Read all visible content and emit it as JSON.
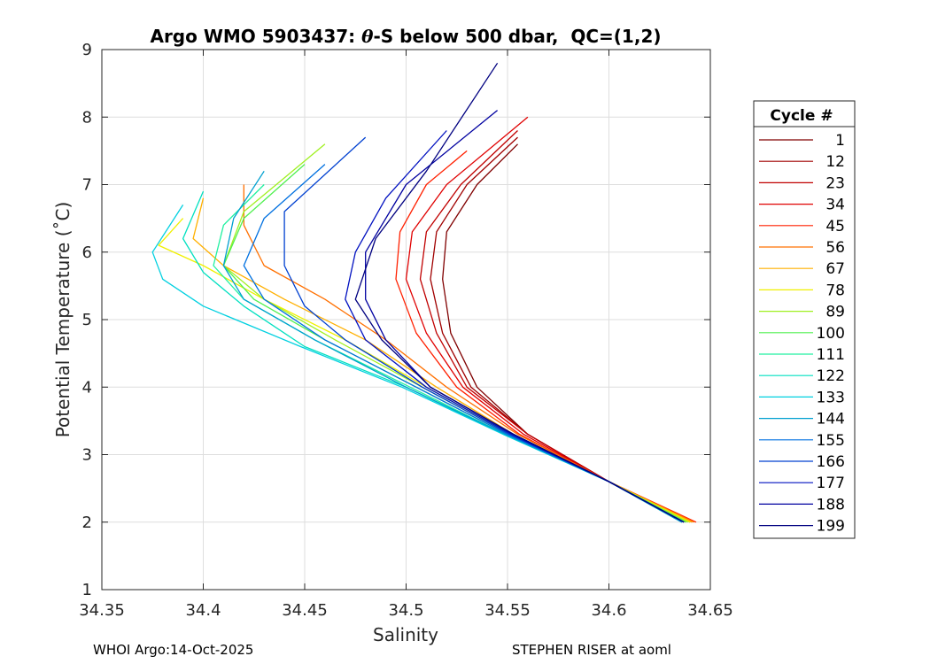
{
  "chart_data": {
    "type": "line",
    "title_prefix": "Argo WMO 5903437: ",
    "title_symbol": "θ",
    "title_suffix": "-S below 500 dbar,  QC=(1,2)",
    "xlabel": "Salinity",
    "ylabel": "Potential Temperature (˚C)",
    "xlim": [
      34.35,
      34.65
    ],
    "ylim": [
      1,
      9
    ],
    "xticks": [
      "34.35",
      "34.4",
      "34.45",
      "34.5",
      "34.55",
      "34.6",
      "34.65"
    ],
    "yticks": [
      "1",
      "2",
      "3",
      "4",
      "5",
      "6",
      "7",
      "8",
      "9"
    ],
    "grid": true,
    "legend": {
      "title": "Cycle #",
      "placement": "right",
      "entries": [
        "1",
        "12",
        "23",
        "34",
        "45",
        "56",
        "67",
        "78",
        "89",
        "100",
        "111",
        "122",
        "133",
        "144",
        "155",
        "166",
        "177",
        "188",
        "199"
      ],
      "colors": [
        "#800000",
        "#a00000",
        "#c00000",
        "#e00000",
        "#ff2000",
        "#ff7000",
        "#ffb000",
        "#f0f000",
        "#a0f020",
        "#50f050",
        "#20f0a0",
        "#00e0c0",
        "#00d0e0",
        "#00a0d0",
        "#0070e0",
        "#0040d0",
        "#0010c0",
        "#0000a0",
        "#000080"
      ]
    },
    "series": [
      {
        "name": "1",
        "s": [
          34.636,
          34.6,
          34.56,
          34.535,
          34.522,
          34.518,
          34.52,
          34.535,
          34.555
        ],
        "t": [
          2.0,
          2.6,
          3.3,
          4.0,
          4.8,
          5.6,
          6.3,
          7.0,
          7.6
        ]
      },
      {
        "name": "12",
        "s": [
          34.638,
          34.6,
          34.56,
          34.532,
          34.518,
          34.512,
          34.515,
          34.53,
          34.555
        ],
        "t": [
          2.0,
          2.6,
          3.3,
          4.0,
          4.8,
          5.6,
          6.3,
          7.0,
          7.7
        ]
      },
      {
        "name": "23",
        "s": [
          34.64,
          34.6,
          34.56,
          34.53,
          34.515,
          34.507,
          34.51,
          34.527,
          34.555
        ],
        "t": [
          2.0,
          2.6,
          3.3,
          4.0,
          4.8,
          5.6,
          6.3,
          7.0,
          7.8
        ]
      },
      {
        "name": "34",
        "s": [
          34.641,
          34.6,
          34.558,
          34.528,
          34.51,
          34.5,
          34.503,
          34.52,
          34.56
        ],
        "t": [
          2.0,
          2.6,
          3.3,
          4.0,
          4.8,
          5.6,
          6.3,
          7.0,
          8.0
        ]
      },
      {
        "name": "45",
        "s": [
          34.643,
          34.6,
          34.556,
          34.525,
          34.505,
          34.495,
          34.497,
          34.51,
          34.53
        ],
        "t": [
          2.0,
          2.6,
          3.3,
          4.0,
          4.8,
          5.6,
          6.3,
          7.0,
          7.5
        ]
      },
      {
        "name": "56",
        "s": [
          34.642,
          34.6,
          34.555,
          34.52,
          34.49,
          34.46,
          34.43,
          34.42,
          34.42
        ],
        "t": [
          2.0,
          2.6,
          3.3,
          4.0,
          4.7,
          5.3,
          5.8,
          6.4,
          7.0
        ]
      },
      {
        "name": "67",
        "s": [
          34.641,
          34.6,
          34.553,
          34.515,
          34.48,
          34.44,
          34.41,
          34.395,
          34.4
        ],
        "t": [
          2.0,
          2.6,
          3.3,
          4.0,
          4.7,
          5.3,
          5.8,
          6.2,
          6.8
        ]
      },
      {
        "name": "78",
        "s": [
          34.64,
          34.6,
          34.552,
          34.51,
          34.47,
          34.43,
          34.4,
          34.378,
          34.39
        ],
        "t": [
          2.0,
          2.6,
          3.3,
          4.0,
          4.7,
          5.3,
          5.8,
          6.1,
          6.5
        ]
      },
      {
        "name": "89",
        "s": [
          34.639,
          34.6,
          34.551,
          34.508,
          34.465,
          34.43,
          34.41,
          34.42,
          34.46
        ],
        "t": [
          2.0,
          2.6,
          3.3,
          4.0,
          4.7,
          5.3,
          5.8,
          6.6,
          7.6
        ]
      },
      {
        "name": "100",
        "s": [
          34.638,
          34.6,
          34.55,
          34.505,
          34.46,
          34.425,
          34.41,
          34.42,
          34.45
        ],
        "t": [
          2.0,
          2.6,
          3.3,
          4.0,
          4.7,
          5.3,
          5.8,
          6.5,
          7.3
        ]
      },
      {
        "name": "111",
        "s": [
          34.637,
          34.6,
          34.549,
          34.502,
          34.455,
          34.42,
          34.405,
          34.41,
          34.43
        ],
        "t": [
          2.0,
          2.6,
          3.3,
          4.0,
          4.7,
          5.3,
          5.8,
          6.4,
          7.0
        ]
      },
      {
        "name": "122",
        "s": [
          34.636,
          34.6,
          34.548,
          34.5,
          34.45,
          34.42,
          34.4,
          34.39,
          34.4
        ],
        "t": [
          2.0,
          2.6,
          3.3,
          4.0,
          4.6,
          5.2,
          5.7,
          6.2,
          6.9
        ]
      },
      {
        "name": "133",
        "s": [
          34.636,
          34.6,
          34.548,
          34.498,
          34.448,
          34.4,
          34.38,
          34.375,
          34.39
        ],
        "t": [
          2.0,
          2.6,
          3.3,
          4.0,
          4.6,
          5.2,
          5.6,
          6.0,
          6.7
        ]
      },
      {
        "name": "144",
        "s": [
          34.636,
          34.6,
          34.549,
          34.5,
          34.455,
          34.42,
          34.41,
          34.415,
          34.43
        ],
        "t": [
          2.0,
          2.6,
          3.3,
          4.0,
          4.7,
          5.3,
          5.8,
          6.5,
          7.2
        ]
      },
      {
        "name": "155",
        "s": [
          34.637,
          34.6,
          34.55,
          34.505,
          34.46,
          34.43,
          34.42,
          34.43,
          34.46
        ],
        "t": [
          2.0,
          2.6,
          3.3,
          4.0,
          4.7,
          5.3,
          5.8,
          6.5,
          7.3
        ]
      },
      {
        "name": "166",
        "s": [
          34.637,
          34.6,
          34.551,
          34.508,
          34.47,
          34.45,
          34.44,
          34.44,
          34.48
        ],
        "t": [
          2.0,
          2.6,
          3.3,
          4.0,
          4.7,
          5.2,
          5.8,
          6.6,
          7.7
        ]
      },
      {
        "name": "177",
        "s": [
          34.637,
          34.6,
          34.552,
          34.51,
          34.48,
          34.47,
          34.475,
          34.49,
          34.52
        ],
        "t": [
          2.0,
          2.6,
          3.3,
          4.0,
          4.7,
          5.3,
          6.0,
          6.8,
          7.8
        ]
      },
      {
        "name": "188",
        "s": [
          34.637,
          34.6,
          34.553,
          34.512,
          34.49,
          34.48,
          34.48,
          34.5,
          34.545
        ],
        "t": [
          2.0,
          2.6,
          3.3,
          4.0,
          4.7,
          5.3,
          6.0,
          7.0,
          8.1
        ]
      },
      {
        "name": "199",
        "s": [
          34.637,
          34.6,
          34.553,
          34.512,
          34.488,
          34.475,
          34.485,
          34.51,
          34.545
        ],
        "t": [
          2.0,
          2.6,
          3.3,
          4.0,
          4.7,
          5.3,
          6.2,
          7.2,
          8.8
        ]
      }
    ]
  },
  "footer": {
    "left": "WHOI Argo:14-Oct-2025",
    "right": "STEPHEN RISER at aoml"
  }
}
